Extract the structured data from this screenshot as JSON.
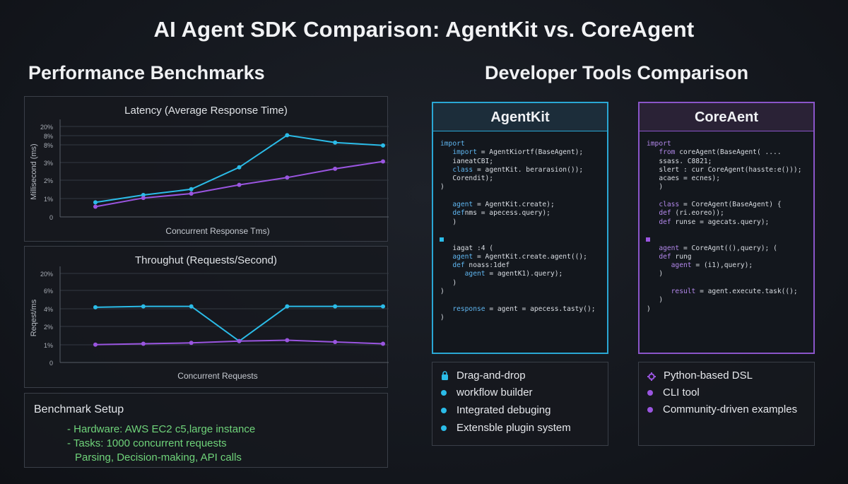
{
  "title": "AI Agent SDK Comparison: AgentKit vs. CoreAgent",
  "left_section_title": "Performance Benchmarks",
  "right_section_title": "Developer Tools Comparison",
  "colors": {
    "agentkit": "#2bbce8",
    "coreagent": "#9a55e0",
    "setup_text": "#6fd37a"
  },
  "chart_data": [
    {
      "type": "line",
      "title": "Latency (Average Response Time)",
      "xlabel": "Concurrent Response Tms)",
      "ylabel": "Millisecond (ms)",
      "y_ticks": [
        "0",
        "1%",
        "2%",
        "3%",
        "8%",
        "8%",
        "20%"
      ],
      "grid": true,
      "series": [
        {
          "color": "#2bbce8",
          "values": [
            1.0,
            1.5,
            1.9,
            3.4,
            5.6,
            5.1,
            4.9
          ]
        },
        {
          "color": "#9a55e0",
          "values": [
            0.7,
            1.3,
            1.6,
            2.2,
            2.7,
            3.3,
            3.8
          ]
        }
      ]
    },
    {
      "type": "line",
      "title": "Throughut (Requests/Second)",
      "xlabel": "Concurrent Requests",
      "ylabel": "Reqest/ms",
      "y_ticks": [
        "0",
        "1%",
        "2%",
        "4%",
        "6%",
        "20%"
      ],
      "grid": true,
      "series": [
        {
          "color": "#2bbce8",
          "values": [
            3.1,
            3.15,
            3.15,
            1.2,
            3.15,
            3.15,
            3.15
          ]
        },
        {
          "color": "#9a55e0",
          "values": [
            1.0,
            1.05,
            1.1,
            1.2,
            1.25,
            1.15,
            1.05
          ]
        }
      ]
    }
  ],
  "benchmark_setup": {
    "title": "Benchmark Setup",
    "lines": [
      "- Hardware: AWS EC2 c5,large instance",
      "- Tasks: 1000 concurrent requests",
      "Parsing, Decision-making, API calls"
    ]
  },
  "agentkit": {
    "name": "AgentKit",
    "code_lines": [
      "import",
      "   import = AgentKiortf(BaseAgent);",
      "   ianeatCBI;",
      "   class = agentKit. berarasion());",
      "   Corendit);",
      ")",
      "",
      "   agent = AgentKit.create);",
      "   defnms = apecess.query);",
      "   )",
      "",
      "",
      "   iagat :4 (",
      "   agent = AgentKit.create.agent(();",
      "   def noass:1def",
      "      agent = agentK1).query);",
      "   )",
      ")",
      "",
      "   response = agent = apecess.tasty();",
      ")"
    ],
    "features": [
      "Drag-and-drop",
      "workflow builder",
      "Integrated debuging",
      "Extensble plugin system"
    ],
    "feature_icons": [
      "lock-icon",
      "dot-icon",
      "dot-icon",
      "dot-icon"
    ]
  },
  "coreagent": {
    "name": "CoreAent",
    "code_lines": [
      "import",
      "   from coreAgent(BaseAgent( ....",
      "   ssass. C8821;",
      "   slert : cur CoreAgent(hasste:e()));",
      "   acaes = ecnes);",
      "   )",
      "",
      "   class = CoreAgent(BaseAgent) {",
      "   def (ri.eoreo));",
      "   def runse = agecats.query);",
      "",
      "",
      "   agent = CoreAgnt((),query); (",
      "   def rung",
      "      agent = (i1),query);",
      "   )",
      "",
      "      result = agent.execute.task(();",
      "   )",
      ")"
    ],
    "features": [
      "Python-based DSL",
      "CLI tool",
      "Community-driven examples"
    ],
    "feature_icons": [
      "gear-icon",
      "dot-icon",
      "dot-icon"
    ]
  }
}
